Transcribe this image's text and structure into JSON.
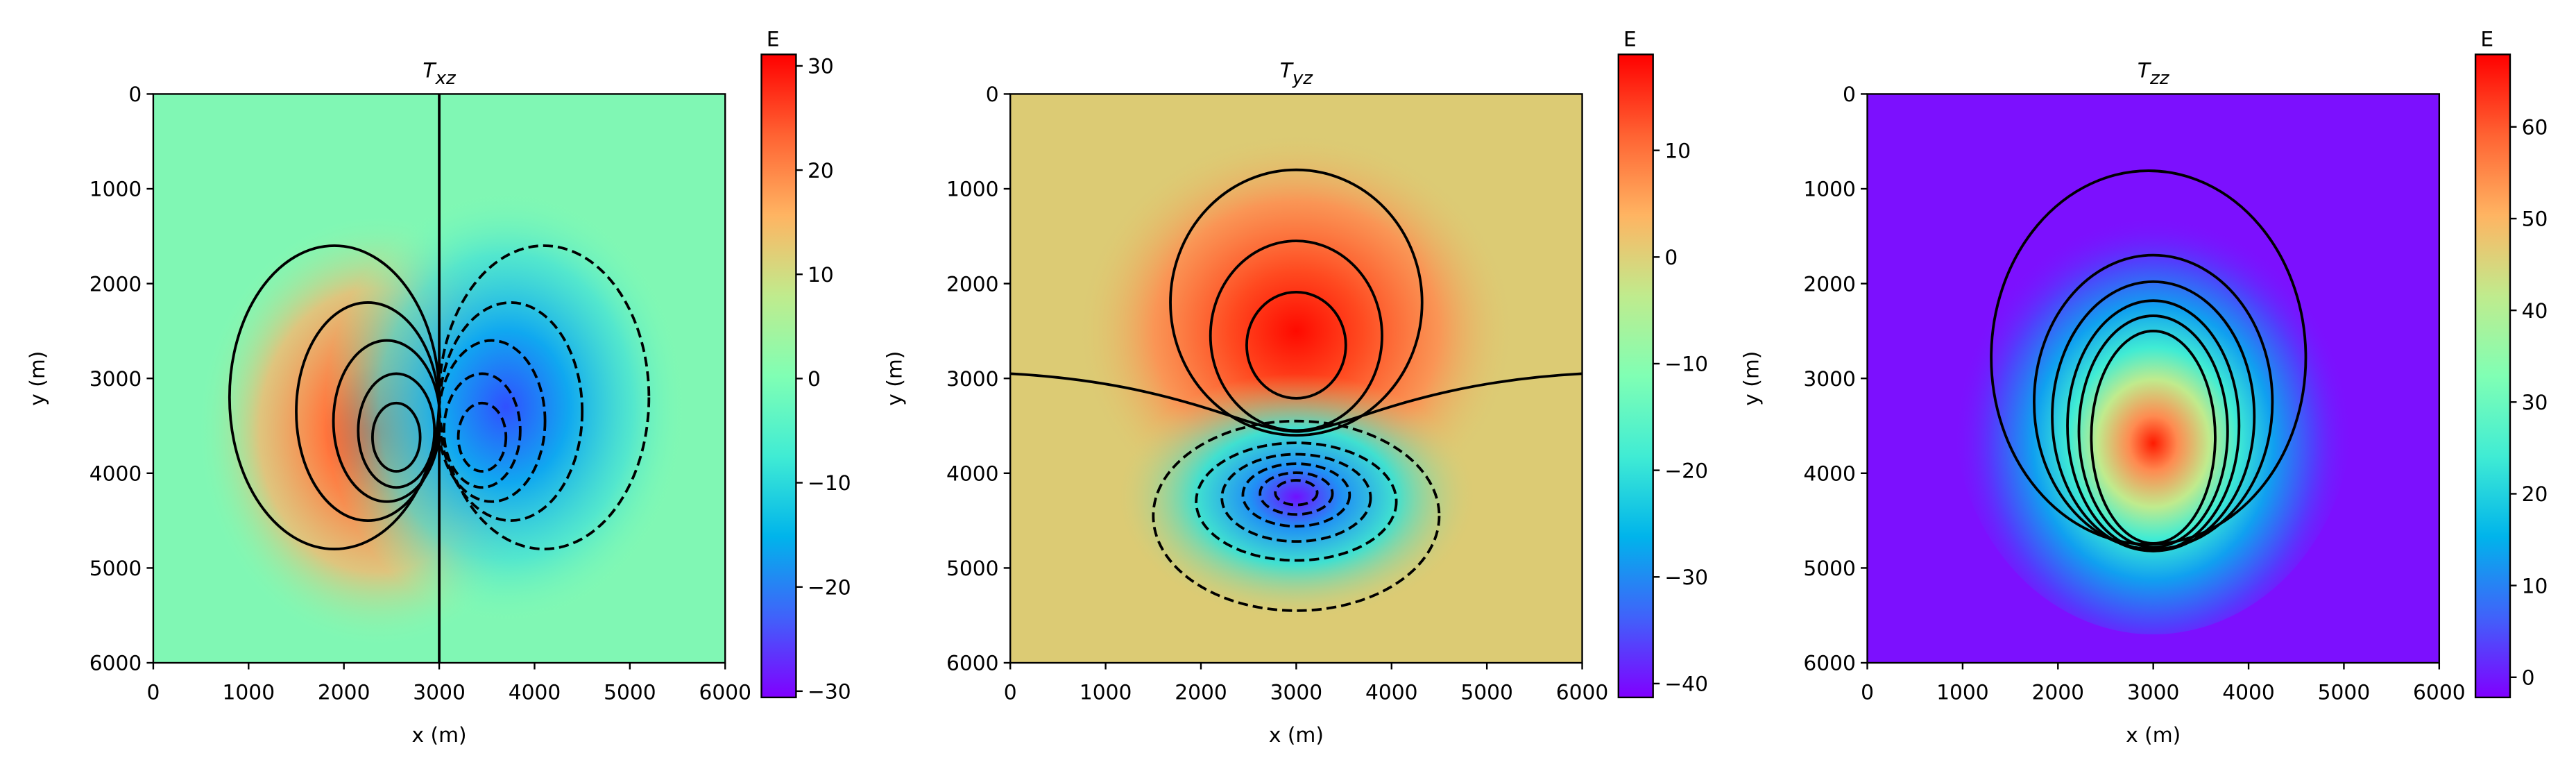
{
  "chart_data": [
    {
      "type": "heatmap",
      "title": {
        "text": "T",
        "subscript": "xz"
      },
      "xlabel": "x (m)",
      "ylabel": "y (m)",
      "xlim": [
        0,
        6000
      ],
      "ylim": [
        0,
        6000
      ],
      "y_inverted": true,
      "xticks": [
        0,
        1000,
        2000,
        3000,
        4000,
        5000,
        6000
      ],
      "yticks": [
        0,
        1000,
        2000,
        3000,
        4000,
        5000,
        6000
      ],
      "colorbar": {
        "label": "E",
        "colormap": "rainbow",
        "lim": [
          -30.6,
          31.1
        ],
        "ticks": [
          {
            "value": -30,
            "label": "−30"
          },
          {
            "value": -20,
            "label": "−20"
          },
          {
            "value": -10,
            "label": "−10"
          },
          0,
          10,
          20,
          30
        ]
      }
    },
    {
      "type": "heatmap",
      "title": {
        "text": "T",
        "subscript": "yz"
      },
      "xlabel": "x (m)",
      "ylabel": "y (m)",
      "xlim": [
        0,
        6000
      ],
      "ylim": [
        0,
        6000
      ],
      "y_inverted": true,
      "xticks": [
        0,
        1000,
        2000,
        3000,
        4000,
        5000,
        6000
      ],
      "yticks": [
        0,
        1000,
        2000,
        3000,
        4000,
        5000,
        6000
      ],
      "colorbar": {
        "label": "E",
        "colormap": "rainbow",
        "lim": [
          -41.3,
          19.0
        ],
        "ticks": [
          {
            "value": -40,
            "label": "−40"
          },
          {
            "value": -30,
            "label": "−30"
          },
          {
            "value": -20,
            "label": "−20"
          },
          {
            "value": -10,
            "label": "−10"
          },
          0,
          10
        ]
      }
    },
    {
      "type": "heatmap",
      "title": {
        "text": "T",
        "subscript": "zz"
      },
      "xlabel": "x (m)",
      "ylabel": "y (m)",
      "xlim": [
        0,
        6000
      ],
      "ylim": [
        0,
        6000
      ],
      "y_inverted": true,
      "xticks": [
        0,
        1000,
        2000,
        3000,
        4000,
        5000,
        6000
      ],
      "yticks": [
        0,
        1000,
        2000,
        3000,
        4000,
        5000,
        6000
      ],
      "colorbar": {
        "label": "E",
        "colormap": "rainbow",
        "lim": [
          -2.2,
          67.9
        ],
        "ticks": [
          0,
          10,
          20,
          30,
          40,
          50,
          60
        ]
      }
    }
  ]
}
